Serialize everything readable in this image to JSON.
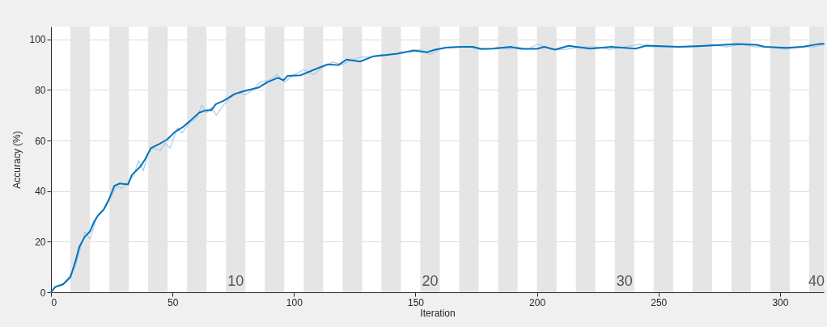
{
  "chart_data": {
    "type": "line",
    "xlabel": "Iteration",
    "ylabel": "Accuracy (%)",
    "xlim": [
      0,
      318
    ],
    "ylim": [
      0,
      105
    ],
    "xticks": [
      0,
      50,
      100,
      150,
      200,
      250,
      300
    ],
    "yticks": [
      0,
      20,
      40,
      60,
      80,
      100
    ],
    "grid": "y",
    "line_style": "solid",
    "marker": "none",
    "bands": [
      {
        "axis": "x",
        "from": 8,
        "to": 16,
        "color": "#e5e5e5"
      },
      {
        "axis": "x",
        "from": 24,
        "to": 32,
        "color": "#e5e5e5"
      },
      {
        "axis": "x",
        "from": 40,
        "to": 48,
        "color": "#e5e5e5"
      },
      {
        "axis": "x",
        "from": 56,
        "to": 64,
        "color": "#e5e5e5"
      },
      {
        "axis": "x",
        "from": 72,
        "to": 80,
        "color": "#e5e5e5",
        "label": "10"
      },
      {
        "axis": "x",
        "from": 88,
        "to": 96,
        "color": "#e5e5e5"
      },
      {
        "axis": "x",
        "from": 104,
        "to": 112,
        "color": "#e5e5e5"
      },
      {
        "axis": "x",
        "from": 120,
        "to": 128,
        "color": "#e5e5e5"
      },
      {
        "axis": "x",
        "from": 136,
        "to": 144,
        "color": "#e5e5e5"
      },
      {
        "axis": "x",
        "from": 152,
        "to": 160,
        "color": "#e5e5e5",
        "label": "20"
      },
      {
        "axis": "x",
        "from": 168,
        "to": 176,
        "color": "#e5e5e5"
      },
      {
        "axis": "x",
        "from": 184,
        "to": 192,
        "color": "#e5e5e5"
      },
      {
        "axis": "x",
        "from": 200,
        "to": 208,
        "color": "#e5e5e5"
      },
      {
        "axis": "x",
        "from": 216,
        "to": 224,
        "color": "#e5e5e5"
      },
      {
        "axis": "x",
        "from": 232,
        "to": 240,
        "color": "#e5e5e5",
        "label": "30"
      },
      {
        "axis": "x",
        "from": 248,
        "to": 256,
        "color": "#e5e5e5"
      },
      {
        "axis": "x",
        "from": 264,
        "to": 272,
        "color": "#e5e5e5"
      },
      {
        "axis": "x",
        "from": 280,
        "to": 288,
        "color": "#e5e5e5"
      },
      {
        "axis": "x",
        "from": 296,
        "to": 304,
        "color": "#e5e5e5"
      },
      {
        "axis": "x",
        "from": 312,
        "to": 318,
        "color": "#e5e5e5",
        "label": "40"
      }
    ],
    "series": [
      {
        "color": "#a9cbe8",
        "x": [
          0,
          2,
          5,
          8,
          10,
          12,
          14,
          16,
          19,
          22,
          25,
          27,
          29,
          32,
          34,
          36,
          38,
          40,
          42,
          45,
          47,
          49,
          52,
          54,
          57,
          60,
          62,
          64,
          66,
          68,
          71,
          74,
          77,
          80,
          83,
          86,
          90,
          93,
          96,
          100,
          104,
          108,
          112,
          116,
          120,
          124,
          128,
          132,
          136,
          140,
          144,
          148,
          152,
          156,
          160,
          164,
          168,
          172,
          176,
          180,
          184,
          188,
          192,
          196,
          200,
          206,
          212,
          218,
          224,
          230,
          236,
          242,
          248,
          254,
          260,
          266,
          272,
          278,
          284,
          290,
          296,
          302,
          308,
          314,
          318
        ],
        "values": [
          0,
          2,
          3,
          7,
          10,
          17,
          24,
          21,
          30,
          33,
          38,
          42,
          41,
          44,
          46,
          52,
          48,
          55,
          57,
          56,
          59,
          57,
          65,
          63,
          67,
          69,
          74,
          71,
          73,
          70,
          74,
          77,
          79,
          78,
          80,
          83,
          84,
          86,
          83,
          86,
          88,
          86,
          89,
          91,
          90,
          92,
          93,
          93,
          94,
          94,
          95,
          95,
          96,
          94,
          96,
          97,
          97,
          97,
          96,
          96,
          97,
          96,
          97,
          96,
          98,
          96,
          96,
          97,
          97,
          96,
          97,
          98,
          97,
          97,
          97,
          97,
          98,
          97,
          98,
          97,
          97,
          96,
          97,
          97,
          98
        ]
      },
      {
        "color": "#0072bd",
        "x": [
          0,
          1.7,
          5,
          8,
          10,
          11.7,
          13.9,
          16,
          17.8,
          19.4,
          21.7,
          23.9,
          26.1,
          28.3,
          31.7,
          33.3,
          36.7,
          38.9,
          41.1,
          44.4,
          47.8,
          51,
          54.4,
          57.2,
          61,
          64,
          66,
          67.8,
          71,
          75.6,
          78.9,
          85.6,
          89,
          93.3,
          95.7,
          97.3,
          102.8,
          108.3,
          113.9,
          118.3,
          121.6,
          127.2,
          132.7,
          138.2,
          142.6,
          149.3,
          154.8,
          158.1,
          162.5,
          169.2,
          173.6,
          176.9,
          182.4,
          189,
          193.5,
          200.1,
          203,
          207.4,
          213,
          221.8,
          230.7,
          240.6,
          245,
          258.3,
          269.3,
          282.6,
          290.4,
          293.7,
          302.6,
          309.2,
          315.8,
          318
        ],
        "values": [
          0,
          2.1,
          3.2,
          6,
          12,
          18,
          21.9,
          24,
          28,
          30.4,
          32.7,
          36.8,
          42.1,
          43,
          42.6,
          46.4,
          49.6,
          52.8,
          57,
          58.5,
          60.4,
          63.4,
          65.4,
          67.7,
          71,
          72,
          72,
          74.3,
          75.7,
          78.4,
          79.4,
          81,
          83,
          84.8,
          83.8,
          85.5,
          85.8,
          88,
          90.1,
          89.8,
          92,
          91.2,
          93.3,
          93.8,
          94.3,
          95.6,
          94.9,
          95.9,
          96.7,
          97,
          97,
          96.2,
          96.3,
          97,
          96.2,
          96.2,
          97,
          95.9,
          97.4,
          96.3,
          97,
          96.3,
          97.5,
          97,
          97.4,
          98.1,
          97.8,
          97,
          96.6,
          97,
          98.1,
          98.2
        ]
      }
    ]
  }
}
